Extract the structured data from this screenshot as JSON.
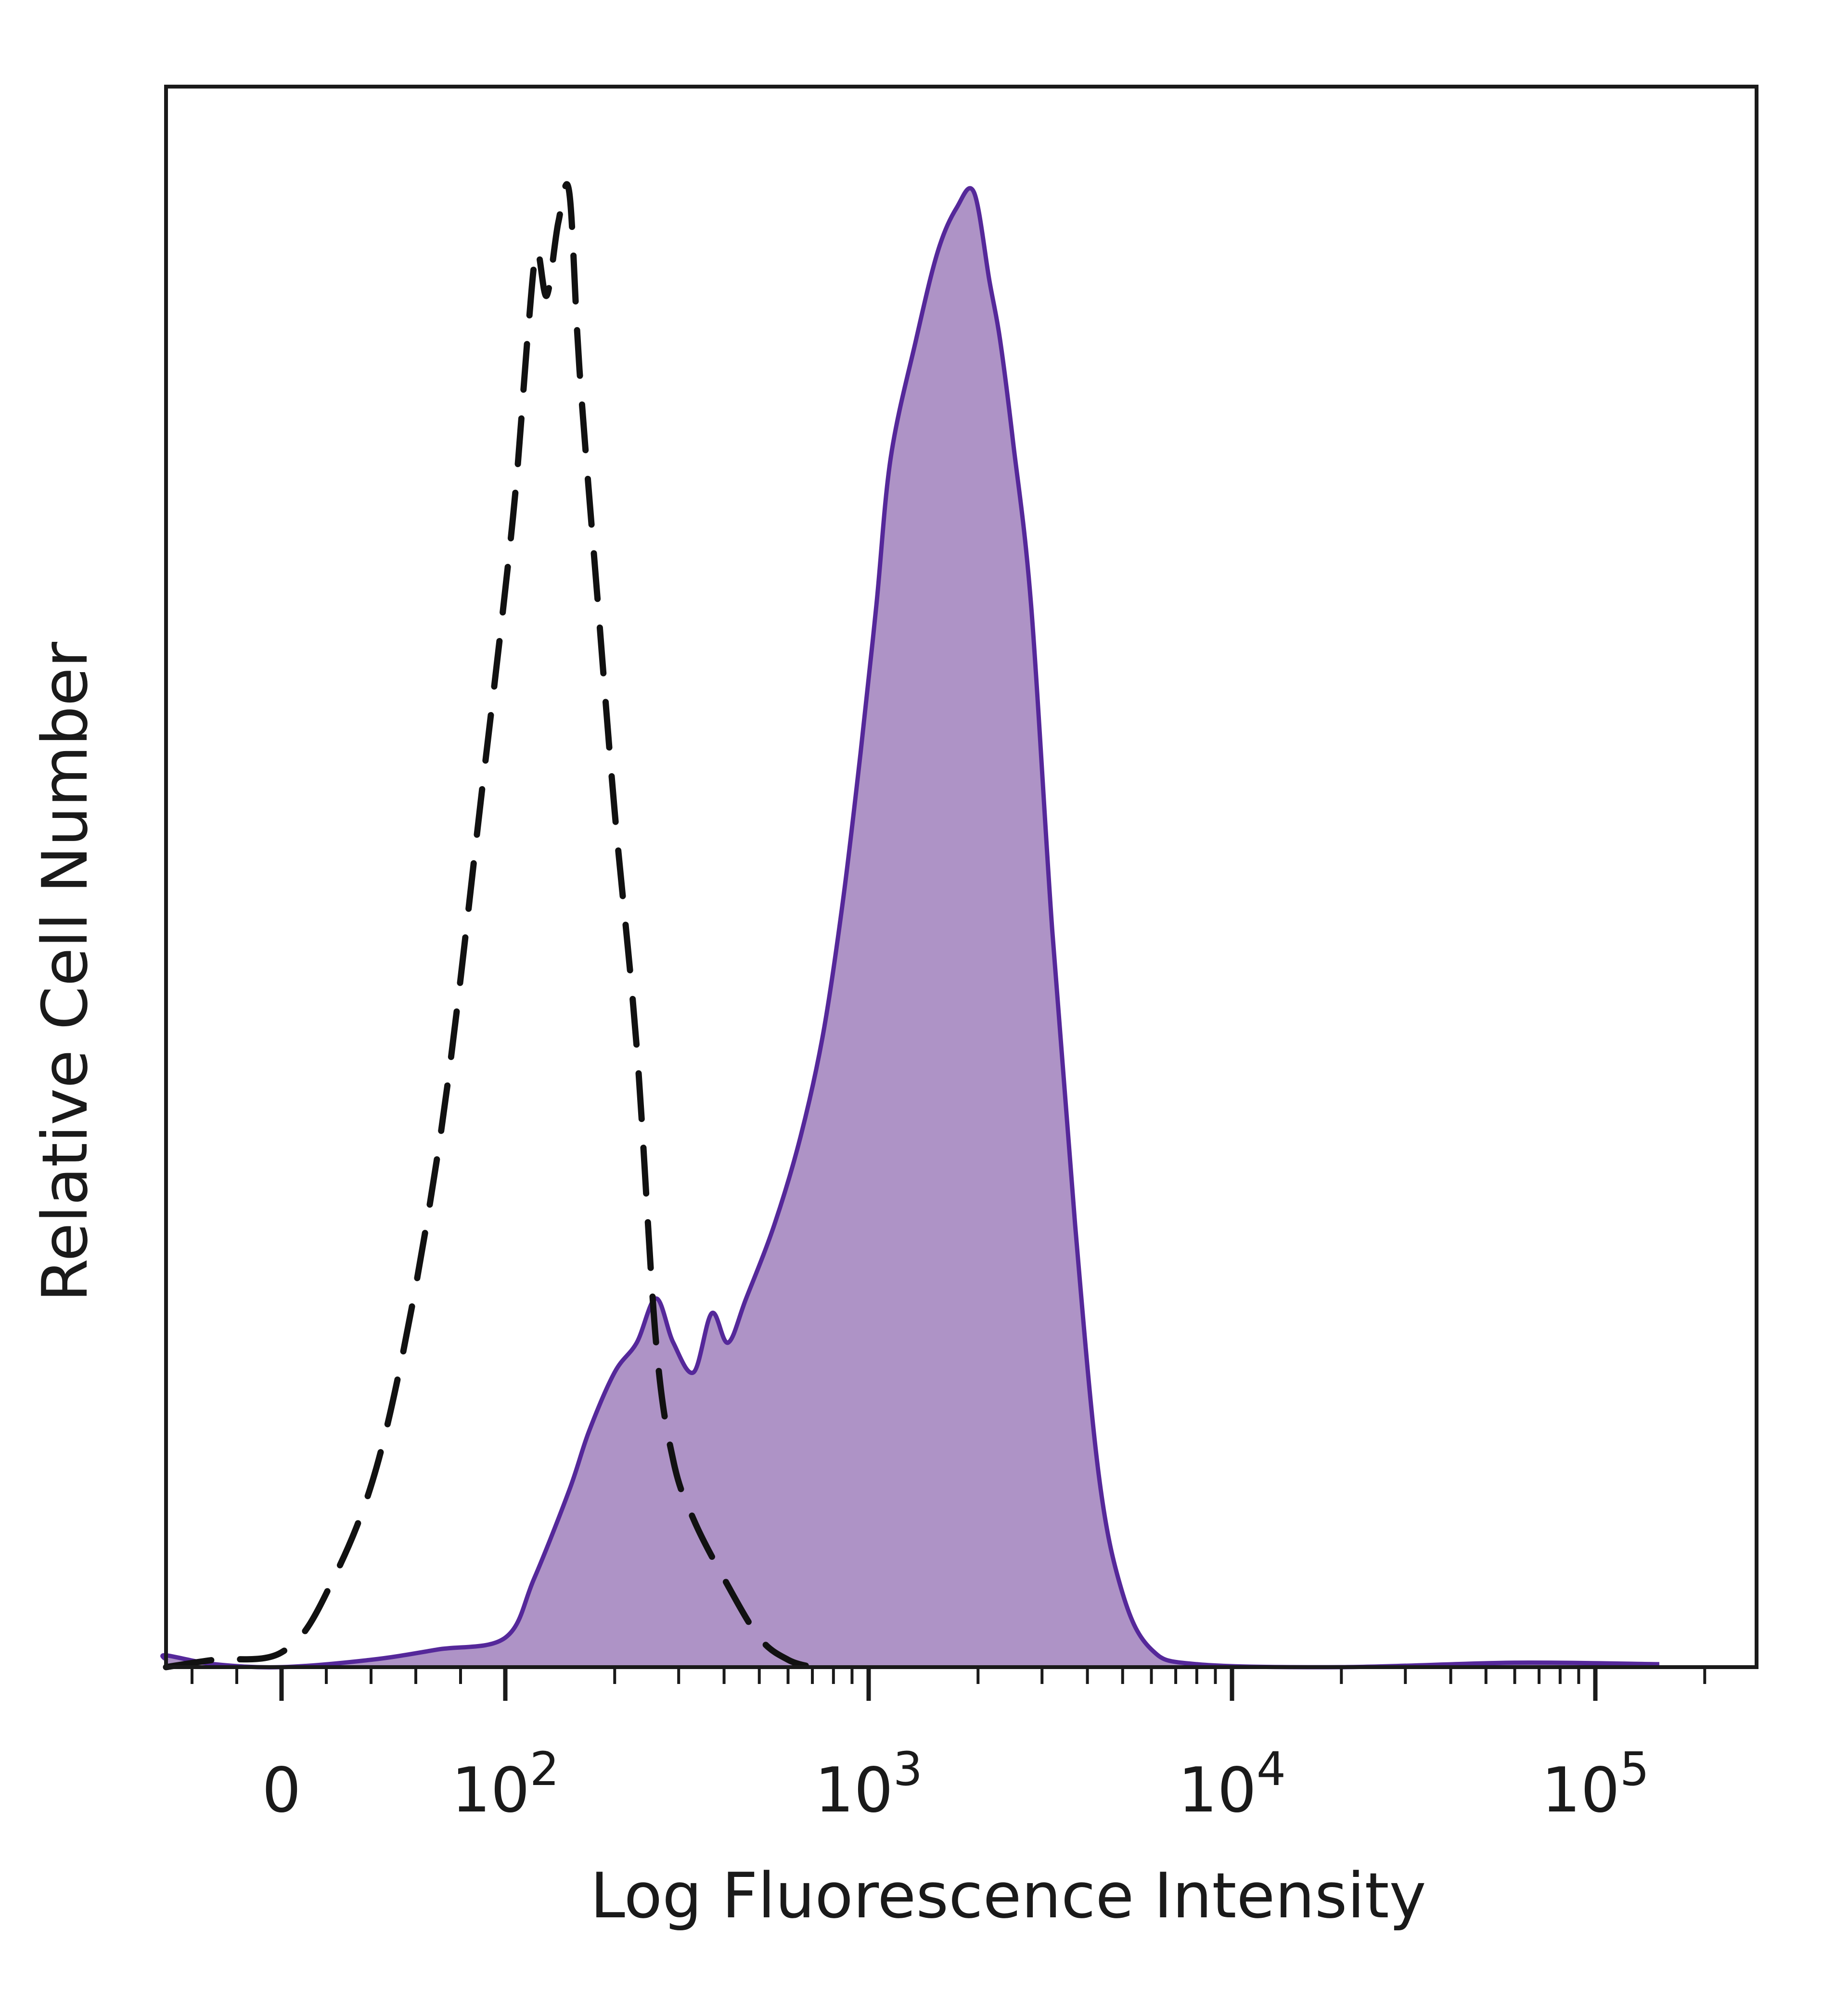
{
  "chart_data": {
    "type": "area",
    "xlabel": "Log Fluorescence Intensity",
    "ylabel": "Relative Cell Number",
    "xscale": "biexponential",
    "x_tick_labels": [
      {
        "value": 0,
        "base": "0",
        "exp": ""
      },
      {
        "value": 100,
        "base": "10",
        "exp": "2"
      },
      {
        "value": 1000,
        "base": "10",
        "exp": "3"
      },
      {
        "value": 10000,
        "base": "10",
        "exp": "4"
      },
      {
        "value": 100000,
        "base": "10",
        "exp": "5"
      }
    ],
    "xlim": [
      -100,
      200000
    ],
    "ylim": [
      0,
      1.05
    ],
    "grid": false,
    "legend": "none",
    "series": [
      {
        "style": "dashed-outline",
        "color": "#111111",
        "points": [
          [
            -60,
            0
          ],
          [
            -30,
            0.005
          ],
          [
            0,
            0.01
          ],
          [
            20,
            0.05
          ],
          [
            45,
            0.15
          ],
          [
            70,
            0.35
          ],
          [
            90,
            0.6
          ],
          [
            105,
            0.78
          ],
          [
            115,
            0.9
          ],
          [
            122,
            0.96
          ],
          [
            130,
            0.93
          ],
          [
            140,
            0.98
          ],
          [
            150,
            1.0
          ],
          [
            160,
            0.88
          ],
          [
            180,
            0.72
          ],
          [
            200,
            0.58
          ],
          [
            230,
            0.42
          ],
          [
            260,
            0.22
          ],
          [
            290,
            0.14
          ],
          [
            330,
            0.1
          ],
          [
            400,
            0.06
          ],
          [
            500,
            0.02
          ],
          [
            600,
            0.005
          ],
          [
            700,
            0
          ]
        ]
      },
      {
        "style": "filled",
        "color": "#55289a",
        "fill": "#ae93c6",
        "points": [
          [
            -100,
            0.005
          ],
          [
            -60,
            0.008
          ],
          [
            -30,
            0.002
          ],
          [
            0,
            0
          ],
          [
            40,
            0.005
          ],
          [
            70,
            0.012
          ],
          [
            100,
            0.02
          ],
          [
            120,
            0.06
          ],
          [
            150,
            0.12
          ],
          [
            170,
            0.16
          ],
          [
            200,
            0.2
          ],
          [
            230,
            0.22
          ],
          [
            260,
            0.25
          ],
          [
            290,
            0.22
          ],
          [
            330,
            0.2
          ],
          [
            370,
            0.24
          ],
          [
            410,
            0.22
          ],
          [
            460,
            0.25
          ],
          [
            550,
            0.3
          ],
          [
            650,
            0.36
          ],
          [
            750,
            0.43
          ],
          [
            850,
            0.52
          ],
          [
            950,
            0.62
          ],
          [
            1050,
            0.72
          ],
          [
            1150,
            0.82
          ],
          [
            1350,
            0.9
          ],
          [
            1550,
            0.96
          ],
          [
            1750,
            0.99
          ],
          [
            1950,
            1.0
          ],
          [
            2150,
            0.94
          ],
          [
            2300,
            0.9
          ],
          [
            2500,
            0.83
          ],
          [
            2800,
            0.72
          ],
          [
            3200,
            0.5
          ],
          [
            3700,
            0.3
          ],
          [
            4300,
            0.13
          ],
          [
            5000,
            0.05
          ],
          [
            6000,
            0.012
          ],
          [
            8000,
            0.002
          ],
          [
            20000,
            0
          ],
          [
            60000,
            0.003
          ],
          [
            150000,
            0.002
          ]
        ]
      }
    ]
  }
}
